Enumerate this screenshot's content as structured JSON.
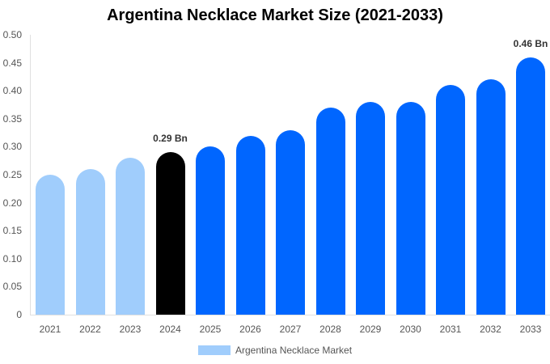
{
  "chart_data": {
    "type": "bar",
    "title": "Argentina Necklace Market Size (2021-2033)",
    "xlabel": "",
    "ylabel": "",
    "ylim": [
      0,
      0.5
    ],
    "yticks": [
      "0",
      "0.05",
      "0.10",
      "0.15",
      "0.20",
      "0.25",
      "0.30",
      "0.35",
      "0.40",
      "0.45",
      "0.50"
    ],
    "categories": [
      "2021",
      "2022",
      "2023",
      "2024",
      "2025",
      "2026",
      "2027",
      "2028",
      "2029",
      "2030",
      "2031",
      "2032",
      "2033"
    ],
    "series": [
      {
        "name": "Argentina Necklace Market",
        "values": [
          0.25,
          0.26,
          0.28,
          0.29,
          0.3,
          0.32,
          0.33,
          0.37,
          0.38,
          0.38,
          0.41,
          0.42,
          0.46
        ]
      }
    ],
    "bar_colors": [
      "#a0cdfc",
      "#a0cdfc",
      "#a0cdfc",
      "#000000",
      "#0066ff",
      "#0066ff",
      "#0066ff",
      "#0066ff",
      "#0066ff",
      "#0066ff",
      "#0066ff",
      "#0066ff",
      "#0066ff"
    ],
    "annotations": [
      {
        "category": "2024",
        "text": "0.29 Bn"
      },
      {
        "category": "2033",
        "text": "0.46 Bn"
      }
    ],
    "legend": {
      "position": "bottom",
      "label": "Argentina Necklace Market",
      "color": "#a0cdfc"
    },
    "grid": false
  }
}
